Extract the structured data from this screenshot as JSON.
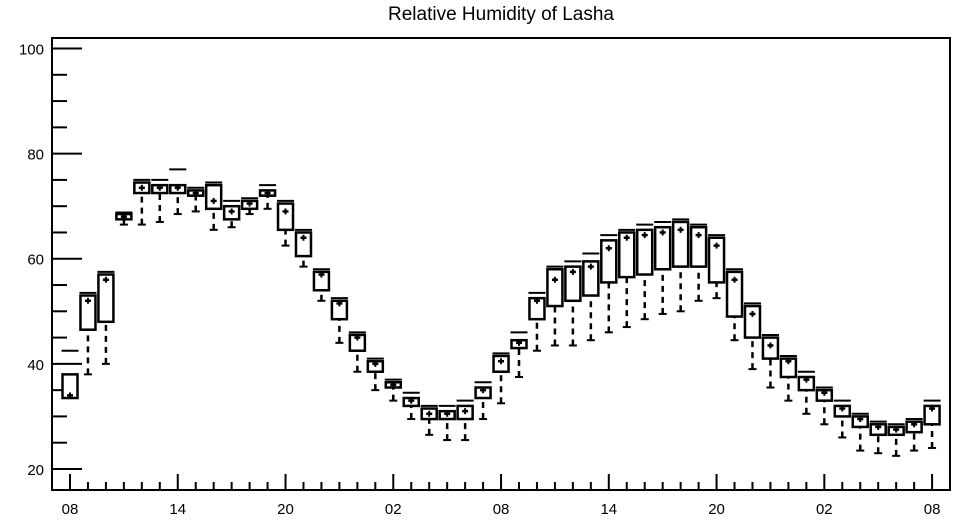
{
  "chart_data": {
    "type": "boxplot",
    "title": "Relative Humidity of Lasha",
    "xlabel": "",
    "ylabel": "",
    "ylim": [
      16,
      102
    ],
    "yticks_major": [
      20,
      40,
      60,
      80,
      100
    ],
    "xtick_labels": [
      "08",
      "14",
      "20",
      "02",
      "08",
      "14",
      "20",
      "02",
      "08"
    ],
    "xtick_hours_index": [
      0,
      6,
      12,
      18,
      24,
      30,
      36,
      42,
      48
    ],
    "grid": false,
    "legend": "none",
    "color": "#000000",
    "series": [
      {
        "i": 0,
        "whislo": 33.5,
        "q1": 33.5,
        "med": 34.0,
        "q3": 38.0,
        "whishi": 42.5
      },
      {
        "i": 1,
        "whislo": 38.0,
        "q1": 46.5,
        "med": 52.0,
        "q3": 53.0,
        "whishi": 53.5
      },
      {
        "i": 2,
        "whislo": 40.0,
        "q1": 48.0,
        "med": 56.0,
        "q3": 57.0,
        "whishi": 57.5
      },
      {
        "i": 3,
        "whislo": 66.5,
        "q1": 67.5,
        "med": 68.0,
        "q3": 68.5,
        "whishi": 68.8
      },
      {
        "i": 4,
        "whislo": 66.5,
        "q1": 72.5,
        "med": 73.5,
        "q3": 74.5,
        "whishi": 75.0
      },
      {
        "i": 5,
        "whislo": 67.0,
        "q1": 72.5,
        "med": 73.5,
        "q3": 74.0,
        "whishi": 75.0
      },
      {
        "i": 6,
        "whislo": 68.5,
        "q1": 72.5,
        "med": 73.5,
        "q3": 74.0,
        "whishi": 77.0
      },
      {
        "i": 7,
        "whislo": 69.0,
        "q1": 72.0,
        "med": 72.5,
        "q3": 73.0,
        "whishi": 73.5
      },
      {
        "i": 8,
        "whislo": 65.5,
        "q1": 69.5,
        "med": 71.0,
        "q3": 74.0,
        "whishi": 74.5
      },
      {
        "i": 9,
        "whislo": 66.0,
        "q1": 67.5,
        "med": 69.0,
        "q3": 70.0,
        "whishi": 71.0
      },
      {
        "i": 10,
        "whislo": 68.5,
        "q1": 69.5,
        "med": 70.5,
        "q3": 71.0,
        "whishi": 71.5
      },
      {
        "i": 11,
        "whislo": 69.5,
        "q1": 72.0,
        "med": 72.5,
        "q3": 73.0,
        "whishi": 74.0
      },
      {
        "i": 12,
        "whislo": 62.5,
        "q1": 65.5,
        "med": 69.0,
        "q3": 70.5,
        "whishi": 71.0
      },
      {
        "i": 13,
        "whislo": 58.5,
        "q1": 60.5,
        "med": 64.0,
        "q3": 65.0,
        "whishi": 65.5
      },
      {
        "i": 14,
        "whislo": 52.0,
        "q1": 54.0,
        "med": 57.0,
        "q3": 57.5,
        "whishi": 58.0
      },
      {
        "i": 15,
        "whislo": 44.0,
        "q1": 48.5,
        "med": 51.5,
        "q3": 52.0,
        "whishi": 52.5
      },
      {
        "i": 16,
        "whislo": 38.5,
        "q1": 42.5,
        "med": 45.0,
        "q3": 45.5,
        "whishi": 46.0
      },
      {
        "i": 17,
        "whislo": 35.0,
        "q1": 38.5,
        "med": 40.0,
        "q3": 40.5,
        "whishi": 41.0
      },
      {
        "i": 18,
        "whislo": 33.0,
        "q1": 35.5,
        "med": 36.0,
        "q3": 36.5,
        "whishi": 37.0
      },
      {
        "i": 19,
        "whislo": 29.5,
        "q1": 32.0,
        "med": 33.0,
        "q3": 33.5,
        "whishi": 34.5
      },
      {
        "i": 20,
        "whislo": 26.5,
        "q1": 29.5,
        "med": 30.5,
        "q3": 31.5,
        "whishi": 32.0
      },
      {
        "i": 21,
        "whislo": 25.5,
        "q1": 29.5,
        "med": 30.5,
        "q3": 31.0,
        "whishi": 32.0
      },
      {
        "i": 22,
        "whislo": 25.5,
        "q1": 29.5,
        "med": 31.0,
        "q3": 32.0,
        "whishi": 33.0
      },
      {
        "i": 23,
        "whislo": 29.5,
        "q1": 33.5,
        "med": 35.0,
        "q3": 35.5,
        "whishi": 36.5
      },
      {
        "i": 24,
        "whislo": 32.5,
        "q1": 38.5,
        "med": 40.5,
        "q3": 41.5,
        "whishi": 42.0
      },
      {
        "i": 25,
        "whislo": 37.5,
        "q1": 43.0,
        "med": 44.0,
        "q3": 44.5,
        "whishi": 46.0
      },
      {
        "i": 26,
        "whislo": 42.5,
        "q1": 48.5,
        "med": 52.0,
        "q3": 52.5,
        "whishi": 53.5
      },
      {
        "i": 27,
        "whislo": 43.5,
        "q1": 51.0,
        "med": 56.0,
        "q3": 58.0,
        "whishi": 58.5
      },
      {
        "i": 28,
        "whislo": 43.5,
        "q1": 52.0,
        "med": 57.5,
        "q3": 58.5,
        "whishi": 59.5
      },
      {
        "i": 29,
        "whislo": 44.5,
        "q1": 53.0,
        "med": 58.5,
        "q3": 59.5,
        "whishi": 61.0
      },
      {
        "i": 30,
        "whislo": 46.0,
        "q1": 55.5,
        "med": 62.0,
        "q3": 63.5,
        "whishi": 64.5
      },
      {
        "i": 31,
        "whislo": 47.0,
        "q1": 56.5,
        "med": 64.0,
        "q3": 65.0,
        "whishi": 65.5
      },
      {
        "i": 32,
        "whislo": 48.5,
        "q1": 57.0,
        "med": 64.5,
        "q3": 65.5,
        "whishi": 66.5
      },
      {
        "i": 33,
        "whislo": 49.5,
        "q1": 58.0,
        "med": 65.0,
        "q3": 66.0,
        "whishi": 67.0
      },
      {
        "i": 34,
        "whislo": 50.0,
        "q1": 58.5,
        "med": 65.5,
        "q3": 67.0,
        "whishi": 67.5
      },
      {
        "i": 35,
        "whislo": 52.0,
        "q1": 58.5,
        "med": 64.5,
        "q3": 66.0,
        "whishi": 66.5
      },
      {
        "i": 36,
        "whislo": 52.5,
        "q1": 55.5,
        "med": 62.5,
        "q3": 64.0,
        "whishi": 64.5
      },
      {
        "i": 37,
        "whislo": 44.5,
        "q1": 49.0,
        "med": 56.0,
        "q3": 57.5,
        "whishi": 58.0
      },
      {
        "i": 38,
        "whislo": 39.0,
        "q1": 45.0,
        "med": 49.5,
        "q3": 51.0,
        "whishi": 51.5
      },
      {
        "i": 39,
        "whislo": 35.5,
        "q1": 41.0,
        "med": 43.5,
        "q3": 45.0,
        "whishi": 45.5
      },
      {
        "i": 40,
        "whislo": 33.0,
        "q1": 37.5,
        "med": 40.5,
        "q3": 41.0,
        "whishi": 41.5
      },
      {
        "i": 41,
        "whislo": 30.5,
        "q1": 35.0,
        "med": 37.0,
        "q3": 37.5,
        "whishi": 38.5
      },
      {
        "i": 42,
        "whislo": 28.5,
        "q1": 33.0,
        "med": 34.5,
        "q3": 35.0,
        "whishi": 35.5
      },
      {
        "i": 43,
        "whislo": 26.0,
        "q1": 30.0,
        "med": 31.5,
        "q3": 32.0,
        "whishi": 33.0
      },
      {
        "i": 44,
        "whislo": 23.5,
        "q1": 28.0,
        "med": 29.5,
        "q3": 30.0,
        "whishi": 30.5
      },
      {
        "i": 45,
        "whislo": 23.0,
        "q1": 26.5,
        "med": 28.0,
        "q3": 28.5,
        "whishi": 29.0
      },
      {
        "i": 46,
        "whislo": 22.5,
        "q1": 26.5,
        "med": 27.5,
        "q3": 28.0,
        "whishi": 28.5
      },
      {
        "i": 47,
        "whislo": 23.5,
        "q1": 27.0,
        "med": 28.5,
        "q3": 29.0,
        "whishi": 29.5
      },
      {
        "i": 48,
        "whislo": 24.0,
        "q1": 28.5,
        "med": 31.5,
        "q3": 32.0,
        "whishi": 33.0
      }
    ]
  }
}
